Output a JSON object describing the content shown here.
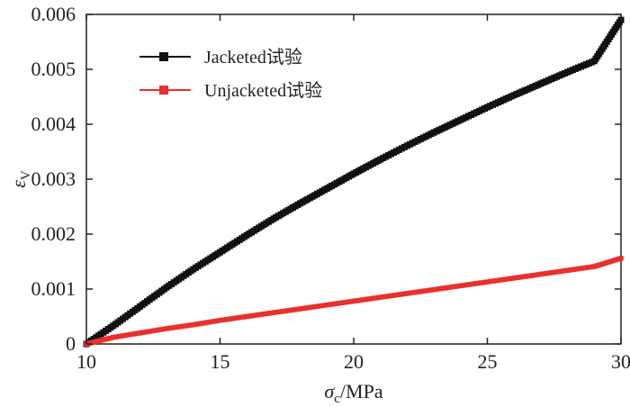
{
  "chart_data": {
    "type": "scatter",
    "xlabel": "σ_c/MPa",
    "xlabel_main": "σ",
    "xlabel_sub": "c",
    "xlabel_unit": "/MPa",
    "ylabel": "ε_V",
    "ylabel_main": "ε",
    "ylabel_sub": "V",
    "xlim": [
      10,
      30
    ],
    "ylim": [
      0,
      0.006
    ],
    "xticks": [
      10,
      15,
      20,
      25,
      30
    ],
    "xtick_labels": [
      "10",
      "15",
      "20",
      "25",
      "30"
    ],
    "yticks": [
      0,
      0.001,
      0.002,
      0.003,
      0.004,
      0.005,
      0.006
    ],
    "ytick_labels": [
      "0",
      "0.001",
      "0.002",
      "0.003",
      "0.004",
      "0.005",
      "0.006"
    ],
    "grid": false,
    "legend_position": "top-left",
    "series": [
      {
        "name": "Jacketed试验",
        "color": "#111111",
        "marker": "square",
        "x": [
          10,
          11,
          12,
          13,
          14,
          15,
          16,
          17,
          18,
          19,
          20,
          21,
          22,
          23,
          24,
          25,
          26,
          27,
          28,
          29,
          30
        ],
        "y": [
          0,
          0.00033,
          0.00068,
          0.00103,
          0.00136,
          0.00167,
          0.00198,
          0.00228,
          0.00256,
          0.00283,
          0.0031,
          0.00336,
          0.00361,
          0.00385,
          0.00408,
          0.00431,
          0.00453,
          0.00474,
          0.00495,
          0.00515,
          0.0059
        ]
      },
      {
        "name": "Unjacketed试验",
        "color": "#e8302d",
        "marker": "square",
        "x": [
          10,
          11,
          12,
          13,
          14,
          15,
          16,
          17,
          18,
          19,
          20,
          21,
          22,
          23,
          24,
          25,
          26,
          27,
          28,
          29,
          30
        ],
        "y": [
          0,
          0.00012,
          0.0002,
          0.00028,
          0.00035,
          0.00043,
          0.0005,
          0.00057,
          0.00064,
          0.00071,
          0.00078,
          0.00085,
          0.00092,
          0.00099,
          0.00106,
          0.00113,
          0.0012,
          0.00127,
          0.00134,
          0.00141,
          0.00156
        ]
      }
    ]
  }
}
